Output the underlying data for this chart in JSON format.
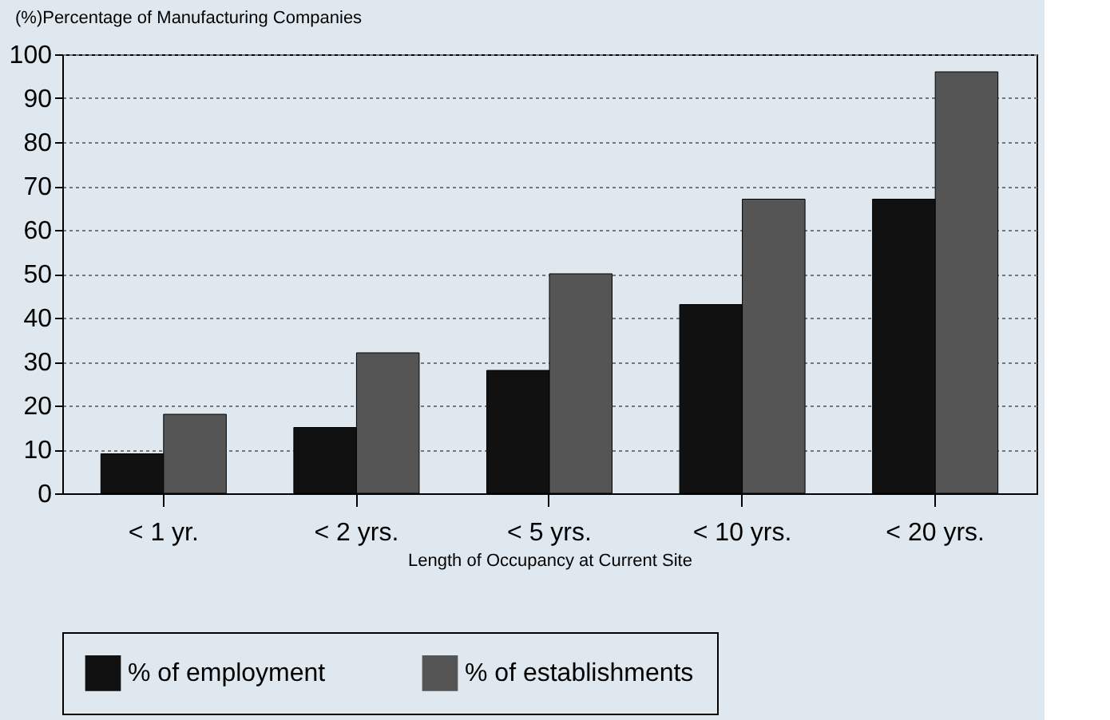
{
  "chart_data": {
    "type": "bar",
    "ylabel": "(%)Percentage of Manufacturing Companies",
    "xlabel": "Length of Occupancy at Current Site",
    "categories": [
      "< 1 yr.",
      "< 2 yrs.",
      "< 5 yrs.",
      "< 10 yrs.",
      "< 20 yrs."
    ],
    "series": [
      {
        "name": "% of employment",
        "color": "#111111",
        "values": [
          9,
          15,
          28,
          43,
          67
        ]
      },
      {
        "name": "% of establishments",
        "color": "#555555",
        "values": [
          18,
          32,
          50,
          67,
          96
        ]
      }
    ],
    "ylim": [
      0,
      100
    ],
    "yticks": [
      0,
      10,
      20,
      30,
      40,
      50,
      60,
      70,
      80,
      90,
      100
    ],
    "grid": "y",
    "legend": "bottom"
  }
}
